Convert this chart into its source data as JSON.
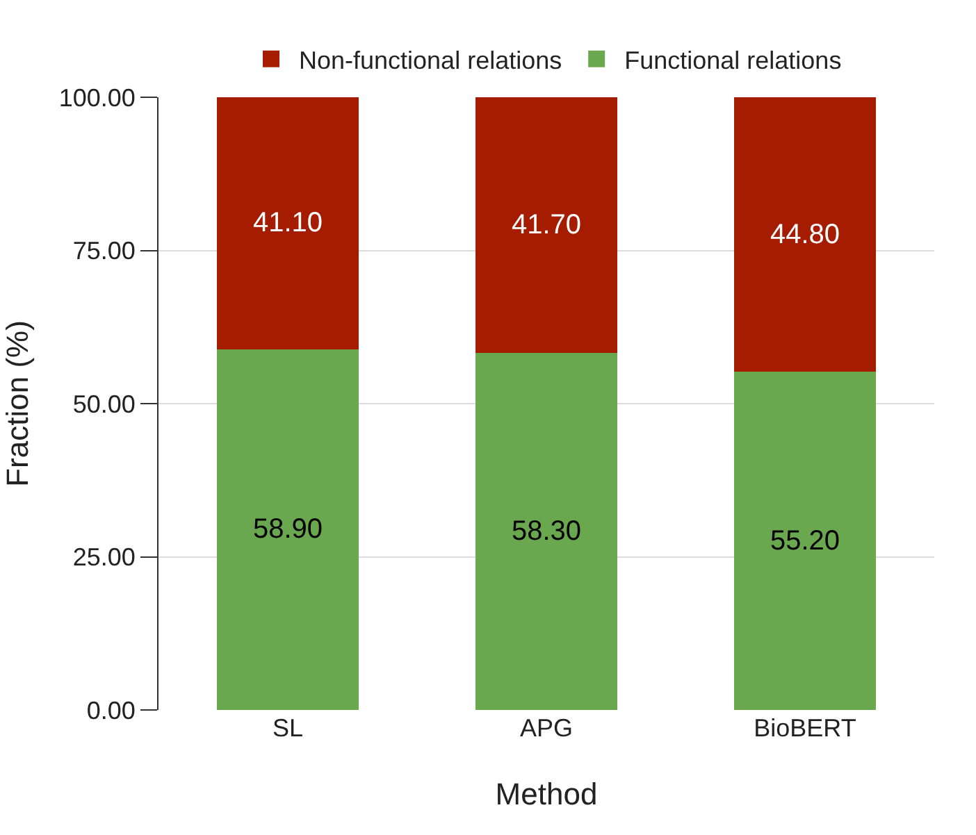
{
  "chart_data": {
    "type": "bar",
    "stacked": true,
    "xlabel": "Method",
    "ylabel": "Fraction (%)",
    "categories": [
      "SL",
      "APG",
      "BioBERT"
    ],
    "series": [
      {
        "name": "Functional relations",
        "color": "#6aa84f",
        "values": [
          58.9,
          58.3,
          55.2
        ],
        "value_labels": [
          "58.90",
          "58.30",
          "55.20"
        ]
      },
      {
        "name": "Non-functional relations",
        "color": "#a61c00",
        "values": [
          41.1,
          41.7,
          44.8
        ],
        "value_labels": [
          "41.10",
          "41.70",
          "44.80"
        ]
      }
    ],
    "ylim": [
      0,
      100
    ],
    "yticks": [
      {
        "value": 0,
        "label": "0.00"
      },
      {
        "value": 25,
        "label": "25.00"
      },
      {
        "value": 50,
        "label": "50.00"
      },
      {
        "value": 75,
        "label": "75.00"
      },
      {
        "value": 100,
        "label": "100.00"
      }
    ],
    "grid": "y",
    "legend": "top"
  }
}
